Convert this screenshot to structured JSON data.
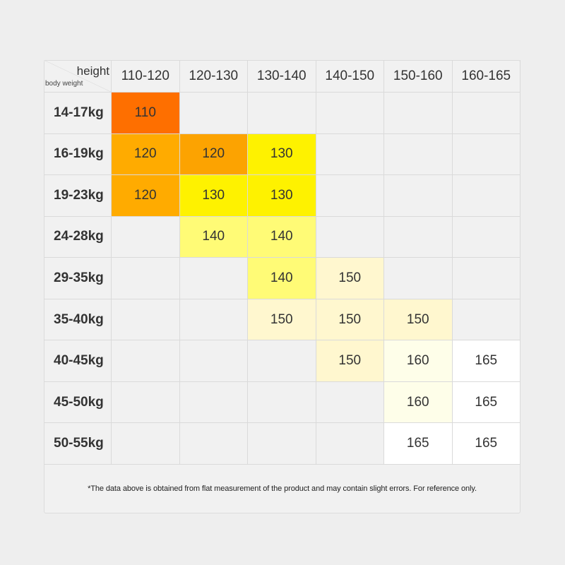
{
  "chart_data": {
    "type": "table",
    "corner_top_label": "height",
    "corner_bottom_label": "body weight",
    "columns": [
      "110-120",
      "120-130",
      "130-140",
      "140-150",
      "150-160",
      "160-165"
    ],
    "rows": [
      {
        "label": "14-17kg",
        "cells": [
          "110",
          "",
          "",
          "",
          "",
          ""
        ]
      },
      {
        "label": "16-19kg",
        "cells": [
          "120",
          "120",
          "130",
          "",
          "",
          ""
        ]
      },
      {
        "label": "19-23kg",
        "cells": [
          "120",
          "130",
          "130",
          "",
          "",
          ""
        ]
      },
      {
        "label": "24-28kg",
        "cells": [
          "",
          "140",
          "140",
          "",
          "",
          ""
        ]
      },
      {
        "label": "29-35kg",
        "cells": [
          "",
          "",
          "140",
          "150",
          "",
          ""
        ]
      },
      {
        "label": "35-40kg",
        "cells": [
          "",
          "",
          "150",
          "150",
          "150",
          ""
        ]
      },
      {
        "label": "40-45kg",
        "cells": [
          "",
          "",
          "",
          "150",
          "160",
          "165"
        ]
      },
      {
        "label": "45-50kg",
        "cells": [
          "",
          "",
          "",
          "",
          "160",
          "165"
        ]
      },
      {
        "label": "50-55kg",
        "cells": [
          "",
          "",
          "",
          "",
          "165",
          "165"
        ]
      }
    ],
    "cell_colors": {
      "110": "#fe6f00",
      "120": "#ffab00",
      "130": "#fef200",
      "140": "#fffb76",
      "150": "#fff7cf",
      "160": "#fefee9",
      "165": "#ffffff"
    },
    "cell_colors_override": {
      "1-1": "#fca301"
    }
  },
  "footnote": "*The data above is obtained from flat measurement of the product and may contain slight errors. For reference only."
}
